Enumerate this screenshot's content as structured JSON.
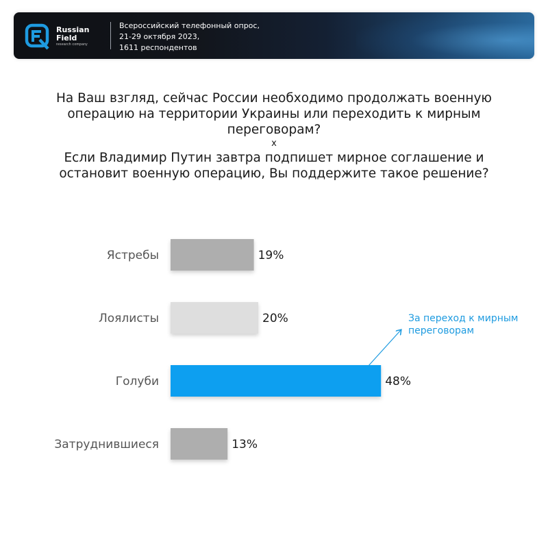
{
  "header": {
    "brand_line1": "Russian",
    "brand_line2": "Field",
    "brand_sub": "research company",
    "survey_line1": "Всероссийский телефонный опрос,",
    "survey_line2": "21-29 октября 2023,",
    "survey_line3": "1611 респондентов",
    "accent_color": "#1e9be0"
  },
  "question": {
    "part1_line1": "На Ваш взгляд, сейчас России необходимо продолжать военную",
    "part1_line2": "операцию на территории Украины или переходить к мирным",
    "part1_line3": "переговорам?",
    "separator": "x",
    "part2_line1": "Если Владимир Путин завтра подпишет мирное соглашение и",
    "part2_line2": "остановит военную операцию, Вы поддержите такое решение?"
  },
  "chart_data": {
    "type": "bar",
    "orientation": "horizontal",
    "categories": [
      "Ястребы",
      "Лоялисты",
      "Голуби",
      "Затруднившиеся"
    ],
    "values": [
      19,
      20,
      48,
      13
    ],
    "value_labels": [
      "19%",
      "20%",
      "48%",
      "13%"
    ],
    "colors": [
      "#aeaeae",
      "#dedede",
      "#0a9ff0",
      "#aeaeae"
    ],
    "xlim": [
      0,
      100
    ],
    "grid": false,
    "legend": "none",
    "annotation": {
      "target": "Голуби",
      "line1": "За переход к мирным",
      "line2": "переговорам"
    }
  }
}
